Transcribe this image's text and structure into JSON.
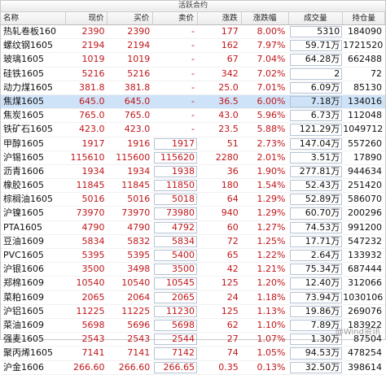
{
  "panel_title": "活跃合约",
  "columns": {
    "name": "名称",
    "last": "现价",
    "bid": "买价",
    "ask": "卖价",
    "change": "涨跌",
    "pct": "涨跌幅",
    "volume": "成交量",
    "oi": "持仓量"
  },
  "rows": [
    {
      "name": "热轧卷板160",
      "last": "2390",
      "bid": "2390",
      "ask": "-",
      "change": "177",
      "pct": "8.00%",
      "volume": "5310",
      "oi": "184090"
    },
    {
      "name": "螺纹钢1605",
      "last": "2194",
      "bid": "2194",
      "ask": "-",
      "change": "162",
      "pct": "7.97%",
      "volume": "59.71万",
      "oi": "1721520"
    },
    {
      "name": "玻璃1605",
      "last": "1019",
      "bid": "1019",
      "ask": "-",
      "change": "67",
      "pct": "7.04%",
      "volume": "64.28万",
      "oi": "662488"
    },
    {
      "name": "硅铁1605",
      "last": "5216",
      "bid": "5216",
      "ask": "-",
      "change": "342",
      "pct": "7.02%",
      "volume": "2",
      "oi": "72"
    },
    {
      "name": "动力煤1605",
      "last": "381.8",
      "bid": "381.8",
      "ask": "-",
      "change": "25.0",
      "pct": "7.01%",
      "volume": "6.09万",
      "oi": "85130"
    },
    {
      "name": "焦煤1605",
      "last": "645.0",
      "bid": "645.0",
      "ask": "-",
      "change": "36.5",
      "pct": "6.00%",
      "volume": "7.18万",
      "oi": "134016"
    },
    {
      "name": "焦炭1605",
      "last": "765.0",
      "bid": "765.0",
      "ask": "-",
      "change": "43.0",
      "pct": "5.96%",
      "volume": "6.73万",
      "oi": "112048"
    },
    {
      "name": "铁矿石1605",
      "last": "423.0",
      "bid": "423.0",
      "ask": "-",
      "change": "23.5",
      "pct": "5.88%",
      "volume": "121.29万",
      "oi": "1049712"
    },
    {
      "name": "甲醇1605",
      "last": "1917",
      "bid": "1916",
      "ask": "1917",
      "change": "51",
      "pct": "2.73%",
      "volume": "147.04万",
      "oi": "557260"
    },
    {
      "name": "沪锡1605",
      "last": "115610",
      "bid": "115600",
      "ask": "115620",
      "change": "2280",
      "pct": "2.01%",
      "volume": "3.51万",
      "oi": "17890"
    },
    {
      "name": "沥青1606",
      "last": "1934",
      "bid": "1934",
      "ask": "1938",
      "change": "36",
      "pct": "1.90%",
      "volume": "277.81万",
      "oi": "944634"
    },
    {
      "name": "橡胶1605",
      "last": "11845",
      "bid": "11845",
      "ask": "11850",
      "change": "180",
      "pct": "1.54%",
      "volume": "52.43万",
      "oi": "251420"
    },
    {
      "name": "棕榈油1605",
      "last": "5016",
      "bid": "5016",
      "ask": "5018",
      "change": "64",
      "pct": "1.29%",
      "volume": "52.89万",
      "oi": "586070"
    },
    {
      "name": "沪镍1605",
      "last": "73970",
      "bid": "73970",
      "ask": "73980",
      "change": "940",
      "pct": "1.29%",
      "volume": "60.70万",
      "oi": "200296"
    },
    {
      "name": "PTA1605",
      "last": "4790",
      "bid": "4790",
      "ask": "4792",
      "change": "60",
      "pct": "1.27%",
      "volume": "74.53万",
      "oi": "991200"
    },
    {
      "name": "豆油1609",
      "last": "5834",
      "bid": "5832",
      "ask": "5834",
      "change": "72",
      "pct": "1.25%",
      "volume": "17.71万",
      "oi": "547232"
    },
    {
      "name": "PVC1605",
      "last": "5395",
      "bid": "5395",
      "ask": "5400",
      "change": "65",
      "pct": "1.22%",
      "volume": "2.64万",
      "oi": "133932"
    },
    {
      "name": "沪银1606",
      "last": "3500",
      "bid": "3498",
      "ask": "3500",
      "change": "42",
      "pct": "1.21%",
      "volume": "75.34万",
      "oi": "687444"
    },
    {
      "name": "郑棉1609",
      "last": "10540",
      "bid": "10540",
      "ask": "10545",
      "change": "125",
      "pct": "1.20%",
      "volume": "12.40万",
      "oi": "312066"
    },
    {
      "name": "菜粕1609",
      "last": "2065",
      "bid": "2064",
      "ask": "2065",
      "change": "24",
      "pct": "1.18%",
      "volume": "73.94万",
      "oi": "1030106"
    },
    {
      "name": "沪铝1605",
      "last": "11225",
      "bid": "11225",
      "ask": "11230",
      "change": "125",
      "pct": "1.13%",
      "volume": "19.86万",
      "oi": "269076"
    },
    {
      "name": "菜油1609",
      "last": "5698",
      "bid": "5696",
      "ask": "5698",
      "change": "62",
      "pct": "1.10%",
      "volume": "7.89万",
      "oi": "183922"
    },
    {
      "name": "强麦1605",
      "last": "2543",
      "bid": "2543",
      "ask": "2544",
      "change": "27",
      "pct": "1.07%",
      "volume": "1.30万",
      "oi": "87504"
    },
    {
      "name": "聚丙烯1605",
      "last": "7141",
      "bid": "7141",
      "ask": "7142",
      "change": "74",
      "pct": "1.05%",
      "volume": "94.53万",
      "oi": "478254"
    },
    {
      "name": "沪金1606",
      "last": "266.60",
      "bid": "266.60",
      "ask": "266.65",
      "change": "0.35",
      "pct": "0.13%",
      "volume": "32.50万",
      "oi": "398614"
    }
  ],
  "selected_row": 5,
  "watermark": "@Wind资讯",
  "colors": {
    "up": "#c0161a",
    "selection": "#cfe3f8"
  }
}
